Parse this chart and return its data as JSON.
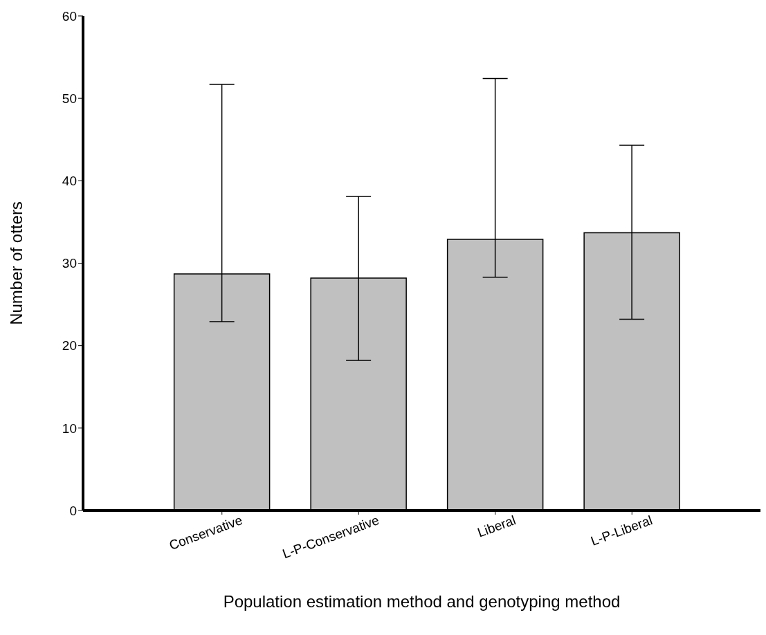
{
  "chart_data": {
    "type": "bar",
    "xlabel": "Population estimation method and genotyping method",
    "ylabel": "Number of otters",
    "categories": [
      "Conservative",
      "L-P-Conservative",
      "Liberal",
      "L-P-Liberal"
    ],
    "values": [
      28.7,
      28.2,
      32.9,
      33.7
    ],
    "errors": [
      [
        22.9,
        51.7
      ],
      [
        18.2,
        38.1
      ],
      [
        28.3,
        52.4
      ],
      [
        23.2,
        44.3
      ]
    ],
    "color": "#c0c0c0",
    "ylim": [
      0,
      60
    ],
    "yticks": [
      0,
      10,
      20,
      30,
      40,
      50,
      60
    ],
    "grid": false
  }
}
